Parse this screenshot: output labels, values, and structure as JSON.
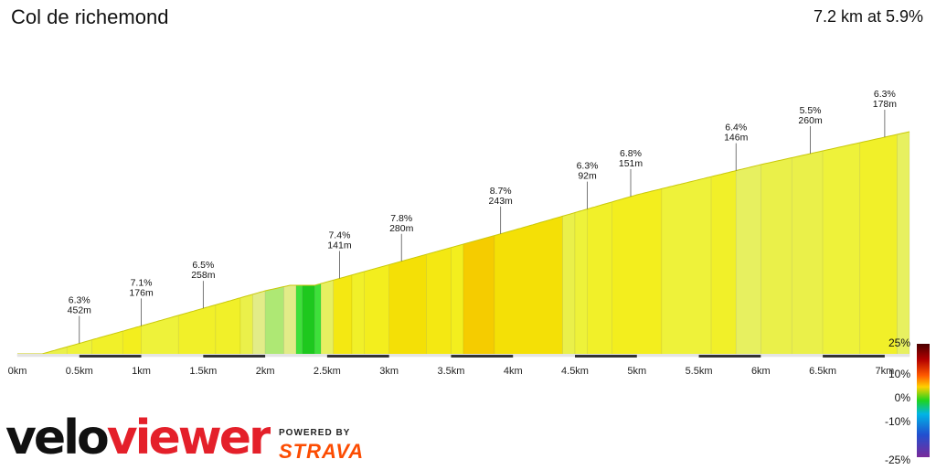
{
  "header": {
    "title": "Col de richemond",
    "summary": "7.2 km at 5.9%"
  },
  "brand": {
    "logo_text": "veloviewer",
    "powered_by": "POWERED BY",
    "strava": "STRAVA",
    "strava_color": "#fc4c02"
  },
  "chart_data": {
    "type": "area",
    "x_unit": "km",
    "xlim": [
      0,
      7.2
    ],
    "x_ticks": [
      "0km",
      "0.5km",
      "1km",
      "1.5km",
      "2km",
      "2.5km",
      "3km",
      "3.5km",
      "4km",
      "4.5km",
      "5km",
      "5.5km",
      "6km",
      "6.5km",
      "7km"
    ],
    "profile": [
      [
        0,
        0
      ],
      [
        0.2,
        0
      ],
      [
        1,
        51
      ],
      [
        2,
        115
      ],
      [
        2.2,
        125
      ],
      [
        2.4,
        125
      ],
      [
        3.2,
        175
      ],
      [
        4,
        225
      ],
      [
        5,
        290
      ],
      [
        6,
        345
      ],
      [
        7,
        395
      ],
      [
        7.2,
        405
      ]
    ],
    "segments": [
      {
        "start": 0.0,
        "end": 0.2,
        "grade": 1.0
      },
      {
        "start": 0.2,
        "end": 0.4,
        "grade": 5.5
      },
      {
        "start": 0.4,
        "end": 0.6,
        "grade": 6.0
      },
      {
        "start": 0.6,
        "end": 0.85,
        "grade": 6.5
      },
      {
        "start": 0.85,
        "end": 1.0,
        "grade": 7.1
      },
      {
        "start": 1.0,
        "end": 1.3,
        "grade": 6.0
      },
      {
        "start": 1.3,
        "end": 1.6,
        "grade": 6.5
      },
      {
        "start": 1.6,
        "end": 1.8,
        "grade": 6.2
      },
      {
        "start": 1.8,
        "end": 1.9,
        "grade": 5.5
      },
      {
        "start": 1.9,
        "end": 2.0,
        "grade": 4.5
      },
      {
        "start": 2.0,
        "end": 2.15,
        "grade": 3.0
      },
      {
        "start": 2.15,
        "end": 2.25,
        "grade": 4.0
      },
      {
        "start": 2.25,
        "end": 2.3,
        "grade": 1.0
      },
      {
        "start": 2.3,
        "end": 2.4,
        "grade": 0.5
      },
      {
        "start": 2.4,
        "end": 2.45,
        "grade": 1.5
      },
      {
        "start": 2.45,
        "end": 2.55,
        "grade": 5.0
      },
      {
        "start": 2.55,
        "end": 2.7,
        "grade": 7.4
      },
      {
        "start": 2.7,
        "end": 2.8,
        "grade": 6.5
      },
      {
        "start": 2.8,
        "end": 3.0,
        "grade": 7.0
      },
      {
        "start": 3.0,
        "end": 3.3,
        "grade": 7.8
      },
      {
        "start": 3.3,
        "end": 3.5,
        "grade": 7.5
      },
      {
        "start": 3.5,
        "end": 3.6,
        "grade": 7.0
      },
      {
        "start": 3.6,
        "end": 3.85,
        "grade": 8.7
      },
      {
        "start": 3.85,
        "end": 4.4,
        "grade": 8.0
      },
      {
        "start": 4.4,
        "end": 4.5,
        "grade": 5.5
      },
      {
        "start": 4.5,
        "end": 4.6,
        "grade": 6.0
      },
      {
        "start": 4.6,
        "end": 4.8,
        "grade": 6.3
      },
      {
        "start": 4.8,
        "end": 5.2,
        "grade": 6.8
      },
      {
        "start": 5.2,
        "end": 5.6,
        "grade": 6.0
      },
      {
        "start": 5.6,
        "end": 5.8,
        "grade": 6.4
      },
      {
        "start": 5.8,
        "end": 6.0,
        "grade": 5.0
      },
      {
        "start": 6.0,
        "end": 6.25,
        "grade": 5.5
      },
      {
        "start": 6.25,
        "end": 6.5,
        "grade": 5.5
      },
      {
        "start": 6.5,
        "end": 6.8,
        "grade": 6.0
      },
      {
        "start": 6.8,
        "end": 7.1,
        "grade": 6.3
      },
      {
        "start": 7.1,
        "end": 7.2,
        "grade": 5.0
      }
    ],
    "annotations": [
      {
        "km": 0.5,
        "grade": "6.3%",
        "length": "452m"
      },
      {
        "km": 1.0,
        "grade": "7.1%",
        "length": "176m"
      },
      {
        "km": 1.5,
        "grade": "6.5%",
        "length": "258m"
      },
      {
        "km": 2.6,
        "grade": "7.4%",
        "length": "141m"
      },
      {
        "km": 3.1,
        "grade": "7.8%",
        "length": "280m"
      },
      {
        "km": 3.9,
        "grade": "8.7%",
        "length": "243m"
      },
      {
        "km": 4.6,
        "grade": "6.3%",
        "length": "92m"
      },
      {
        "km": 4.95,
        "grade": "6.8%",
        "length": "151m"
      },
      {
        "km": 5.8,
        "grade": "6.4%",
        "length": "146m"
      },
      {
        "km": 6.4,
        "grade": "5.5%",
        "length": "260m"
      },
      {
        "km": 7.0,
        "grade": "6.3%",
        "length": "178m"
      }
    ],
    "legend": {
      "labels": [
        "25%",
        "10%",
        "0%",
        "-10%",
        "-25%"
      ]
    }
  }
}
